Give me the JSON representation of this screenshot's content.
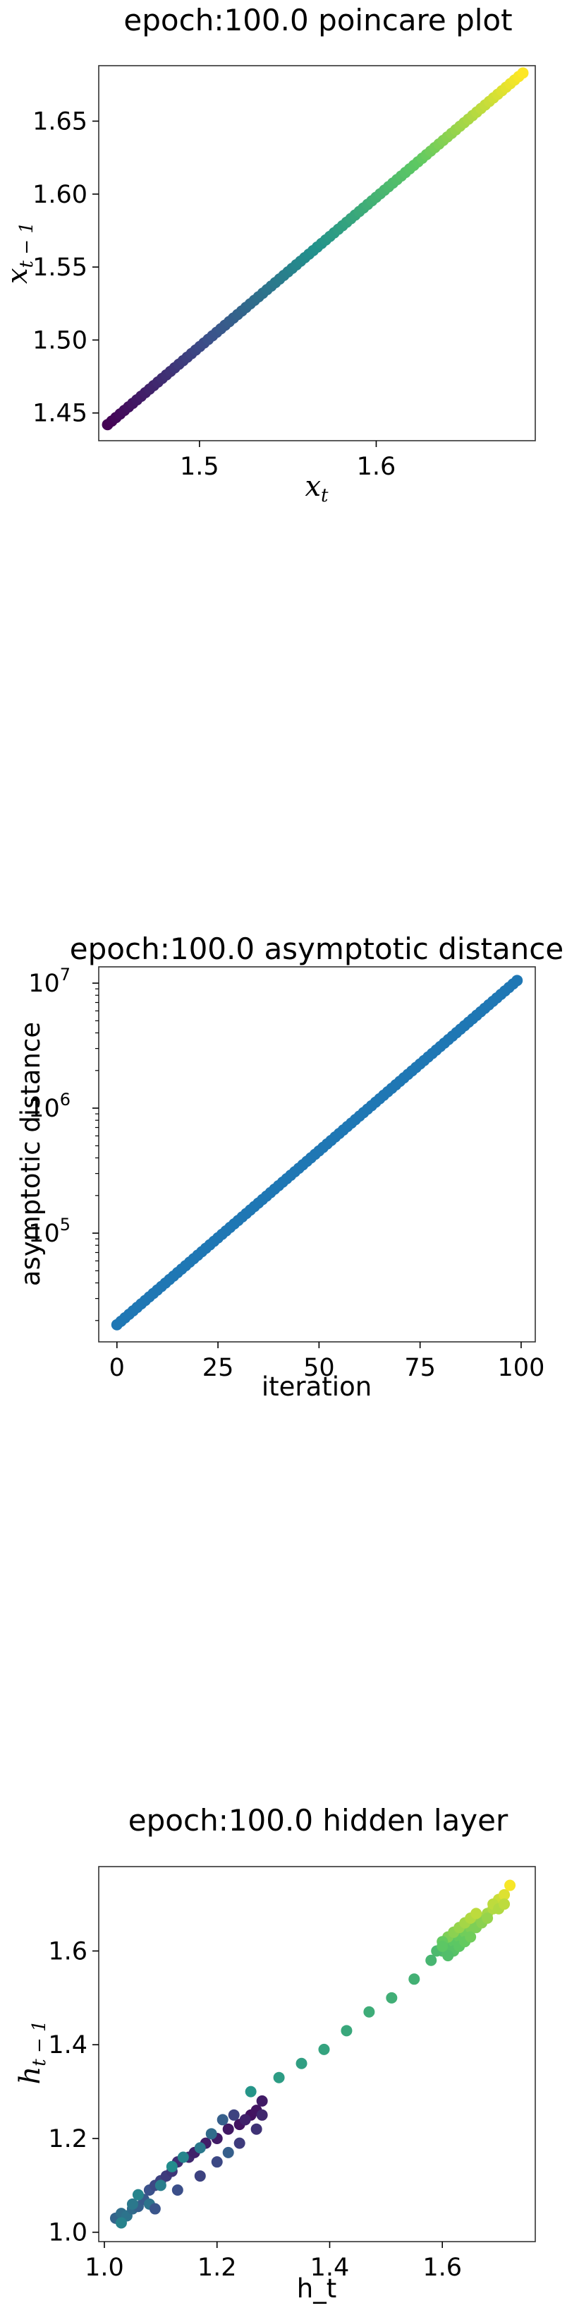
{
  "chart_data": [
    {
      "type": "scatter",
      "title": "epoch:100.0 poincare plot",
      "xlabel": "x_t",
      "ylabel": "x_{t-1}",
      "xlim": [
        1.443,
        1.69
      ],
      "ylim": [
        1.431,
        1.688
      ],
      "xticks": [
        1.5,
        1.6
      ],
      "xtick_labels": [
        "1.5",
        "1.6"
      ],
      "yticks": [
        1.45,
        1.5,
        1.55,
        1.6,
        1.65
      ],
      "ytick_labels": [
        "1.45",
        "1.50",
        "1.55",
        "1.60",
        "1.65"
      ],
      "colormap": "viridis",
      "series": [
        {
          "x_start": 1.448,
          "x_end": 1.683,
          "y_start": 1.442,
          "y_end": 1.683,
          "n_points": 100
        }
      ],
      "grid": false
    },
    {
      "type": "scatter",
      "title": "epoch:100.0 asymptotic distance",
      "xlabel": "iteration",
      "ylabel": "asymptotic distance",
      "yscale": "log",
      "xlim": [
        -4.5,
        103.5
      ],
      "ylim": [
        13500,
        13500000
      ],
      "xticks": [
        0,
        25,
        50,
        75,
        100
      ],
      "xtick_labels": [
        "0",
        "25",
        "50",
        "75",
        "100"
      ],
      "yticks": [
        100000,
        1000000,
        10000000
      ],
      "ytick_labels": [
        "10",
        "10",
        "10"
      ],
      "ytick_exponents": [
        "5",
        "6",
        "7"
      ],
      "color": "#1f77b4",
      "series": [
        {
          "x_start": 0,
          "x_end": 99,
          "y_start": 18500,
          "y_end": 10500000,
          "n_points": 100
        }
      ],
      "grid": false
    },
    {
      "type": "scatter",
      "title": "epoch:100.0 hidden layer",
      "xlabel": "h_t",
      "ylabel": "h_{t-1}",
      "xlim": [
        0.99,
        1.765
      ],
      "ylim": [
        0.98,
        1.78
      ],
      "xticks": [
        1.0,
        1.2,
        1.4,
        1.6
      ],
      "xtick_labels": [
        "1.0",
        "1.2",
        "1.4",
        "1.6"
      ],
      "yticks": [
        1.0,
        1.2,
        1.4,
        1.6
      ],
      "ytick_labels": [
        "1.0",
        "1.2",
        "1.4",
        "1.6"
      ],
      "colormap": "viridis",
      "points": [
        [
          1.02,
          1.03,
          0.32
        ],
        [
          1.03,
          1.04,
          0.36
        ],
        [
          1.04,
          1.035,
          0.38
        ],
        [
          1.05,
          1.05,
          0.35
        ],
        [
          1.06,
          1.055,
          0.3
        ],
        [
          1.07,
          1.07,
          0.28
        ],
        [
          1.05,
          1.06,
          0.4
        ],
        [
          1.08,
          1.09,
          0.25
        ],
        [
          1.09,
          1.1,
          0.22
        ],
        [
          1.1,
          1.11,
          0.2
        ],
        [
          1.06,
          1.08,
          0.45
        ],
        [
          1.11,
          1.12,
          0.18
        ],
        [
          1.12,
          1.13,
          0.16
        ],
        [
          1.13,
          1.15,
          0.14
        ],
        [
          1.15,
          1.16,
          0.12
        ],
        [
          1.16,
          1.17,
          0.1
        ],
        [
          1.18,
          1.19,
          0.09
        ],
        [
          1.2,
          1.2,
          0.08
        ],
        [
          1.22,
          1.22,
          0.07
        ],
        [
          1.24,
          1.23,
          0.06
        ],
        [
          1.26,
          1.25,
          0.05
        ],
        [
          1.27,
          1.26,
          0.06
        ],
        [
          1.28,
          1.28,
          0.08
        ],
        [
          1.25,
          1.24,
          0.1
        ],
        [
          1.23,
          1.25,
          0.2
        ],
        [
          1.21,
          1.24,
          0.3
        ],
        [
          1.19,
          1.21,
          0.35
        ],
        [
          1.17,
          1.18,
          0.4
        ],
        [
          1.14,
          1.16,
          0.45
        ],
        [
          1.12,
          1.14,
          0.48
        ],
        [
          1.1,
          1.1,
          0.42
        ],
        [
          1.08,
          1.06,
          0.38
        ],
        [
          1.03,
          1.02,
          0.44
        ],
        [
          1.09,
          1.05,
          0.26
        ],
        [
          1.13,
          1.09,
          0.24
        ],
        [
          1.17,
          1.12,
          0.2
        ],
        [
          1.2,
          1.15,
          0.22
        ],
        [
          1.24,
          1.19,
          0.18
        ],
        [
          1.27,
          1.22,
          0.15
        ],
        [
          1.26,
          1.3,
          0.52
        ],
        [
          1.28,
          1.25,
          0.12
        ],
        [
          1.22,
          1.17,
          0.3
        ],
        [
          1.31,
          1.33,
          0.55
        ],
        [
          1.35,
          1.36,
          0.56
        ],
        [
          1.39,
          1.39,
          0.58
        ],
        [
          1.43,
          1.43,
          0.6
        ],
        [
          1.47,
          1.47,
          0.62
        ],
        [
          1.51,
          1.5,
          0.63
        ],
        [
          1.55,
          1.54,
          0.64
        ],
        [
          1.58,
          1.58,
          0.66
        ],
        [
          1.6,
          1.6,
          0.7
        ],
        [
          1.61,
          1.61,
          0.72
        ],
        [
          1.62,
          1.62,
          0.74
        ],
        [
          1.63,
          1.63,
          0.76
        ],
        [
          1.64,
          1.64,
          0.78
        ],
        [
          1.65,
          1.65,
          0.8
        ],
        [
          1.66,
          1.66,
          0.82
        ],
        [
          1.67,
          1.67,
          0.84
        ],
        [
          1.68,
          1.68,
          0.86
        ],
        [
          1.69,
          1.69,
          0.88
        ],
        [
          1.7,
          1.71,
          0.92
        ],
        [
          1.71,
          1.72,
          0.95
        ],
        [
          1.72,
          1.74,
          0.99
        ],
        [
          1.61,
          1.63,
          0.8
        ],
        [
          1.62,
          1.6,
          0.72
        ],
        [
          1.63,
          1.61,
          0.74
        ],
        [
          1.64,
          1.62,
          0.76
        ],
        [
          1.65,
          1.63,
          0.78
        ],
        [
          1.66,
          1.65,
          0.8
        ],
        [
          1.67,
          1.66,
          0.82
        ],
        [
          1.68,
          1.67,
          0.84
        ],
        [
          1.69,
          1.7,
          0.9
        ],
        [
          1.6,
          1.62,
          0.76
        ],
        [
          1.61,
          1.59,
          0.7
        ],
        [
          1.62,
          1.64,
          0.82
        ],
        [
          1.63,
          1.65,
          0.84
        ],
        [
          1.64,
          1.66,
          0.86
        ],
        [
          1.65,
          1.67,
          0.88
        ],
        [
          1.66,
          1.68,
          0.9
        ],
        [
          1.7,
          1.69,
          0.88
        ],
        [
          1.71,
          1.7,
          0.9
        ],
        [
          1.59,
          1.6,
          0.68
        ],
        [
          1.6,
          1.61,
          0.74
        ]
      ],
      "grid": false
    }
  ]
}
